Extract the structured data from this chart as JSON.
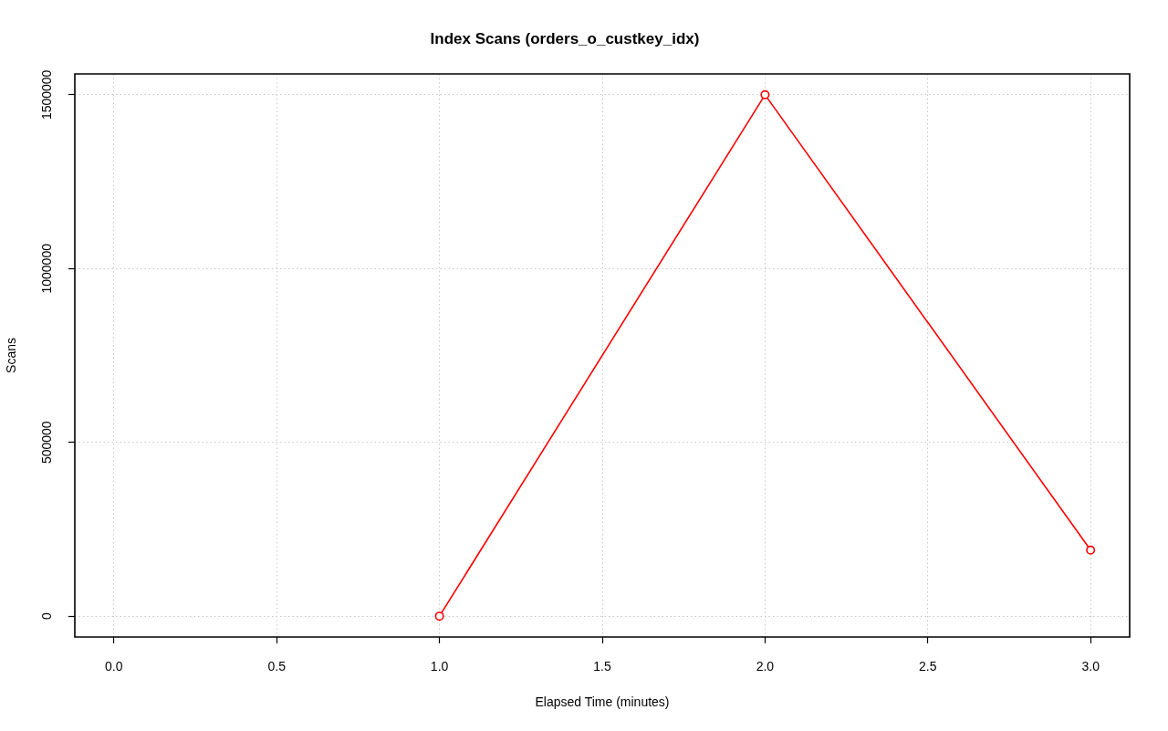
{
  "chart_data": {
    "type": "line",
    "title": "Index Scans (orders_o_custkey_idx)",
    "xlabel": "Elapsed Time (minutes)",
    "ylabel": "Scans",
    "x": [
      1,
      2,
      3
    ],
    "series": [
      {
        "color": "#ff0000",
        "values": [
          0,
          1500000,
          190000
        ]
      }
    ],
    "xlim": [
      -0.12,
      3.12
    ],
    "ylim": [
      -60000,
      1560000
    ],
    "xticks": [
      {
        "value": 0,
        "label": "0.0"
      },
      {
        "value": 0.5,
        "label": "0.5"
      },
      {
        "value": 1,
        "label": "1.0"
      },
      {
        "value": 1.5,
        "label": "1.5"
      },
      {
        "value": 2,
        "label": "2.0"
      },
      {
        "value": 2.5,
        "label": "2.5"
      },
      {
        "value": 3,
        "label": "3.0"
      }
    ],
    "yticks": [
      0,
      500000,
      1000000,
      1500000
    ],
    "grid": true,
    "marker": "circle",
    "line_style": "solid"
  }
}
